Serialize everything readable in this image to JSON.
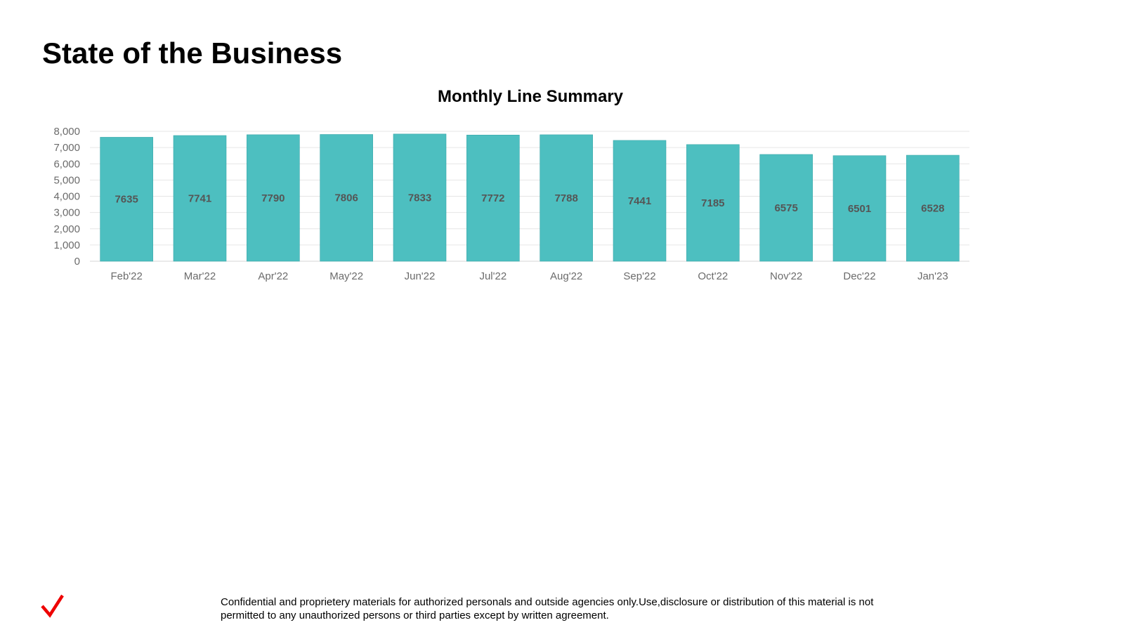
{
  "header": {
    "title": "State of the Business"
  },
  "chart_data": {
    "type": "bar",
    "title": "Monthly Line Summary",
    "xlabel": "",
    "ylabel": "",
    "categories": [
      "Feb'22",
      "Mar'22",
      "Apr'22",
      "May'22",
      "Jun'22",
      "Jul'22",
      "Aug'22",
      "Sep'22",
      "Oct'22",
      "Nov'22",
      "Dec'22",
      "Jan'23"
    ],
    "values": [
      7635,
      7741,
      7790,
      7806,
      7833,
      7772,
      7788,
      7441,
      7185,
      6575,
      6501,
      6528
    ],
    "data_labels": [
      "7635",
      "7741",
      "7790",
      "7806",
      "7833",
      "7772",
      "7788",
      "7441",
      "7185",
      "6575",
      "6501",
      "6528"
    ],
    "ylim": [
      0,
      8000
    ],
    "yticks": [
      0,
      1000,
      2000,
      3000,
      4000,
      5000,
      6000,
      7000,
      8000
    ],
    "ytick_labels": [
      "0",
      "1,000",
      "2,000",
      "3,000",
      "4,000",
      "5,000",
      "6,000",
      "7,000",
      "8,000"
    ],
    "grid": true,
    "legend": "none",
    "colors": {
      "bar": "#4dbfc0",
      "bar_edge": "#3aa7a9",
      "grid": "#e6e6e6",
      "axis_text": "#6b6b6b",
      "data_label": "#555555"
    }
  },
  "footer": {
    "disclaimer": "Confidential and proprietery materials for authorized personals and outside agencies only.Use,disclosure or distribution of this material is not permitted to any unauthorized persons or third parties except by written agreement.",
    "logo_icon": "checkmark-logo-icon",
    "logo_color": "#ee0000"
  }
}
